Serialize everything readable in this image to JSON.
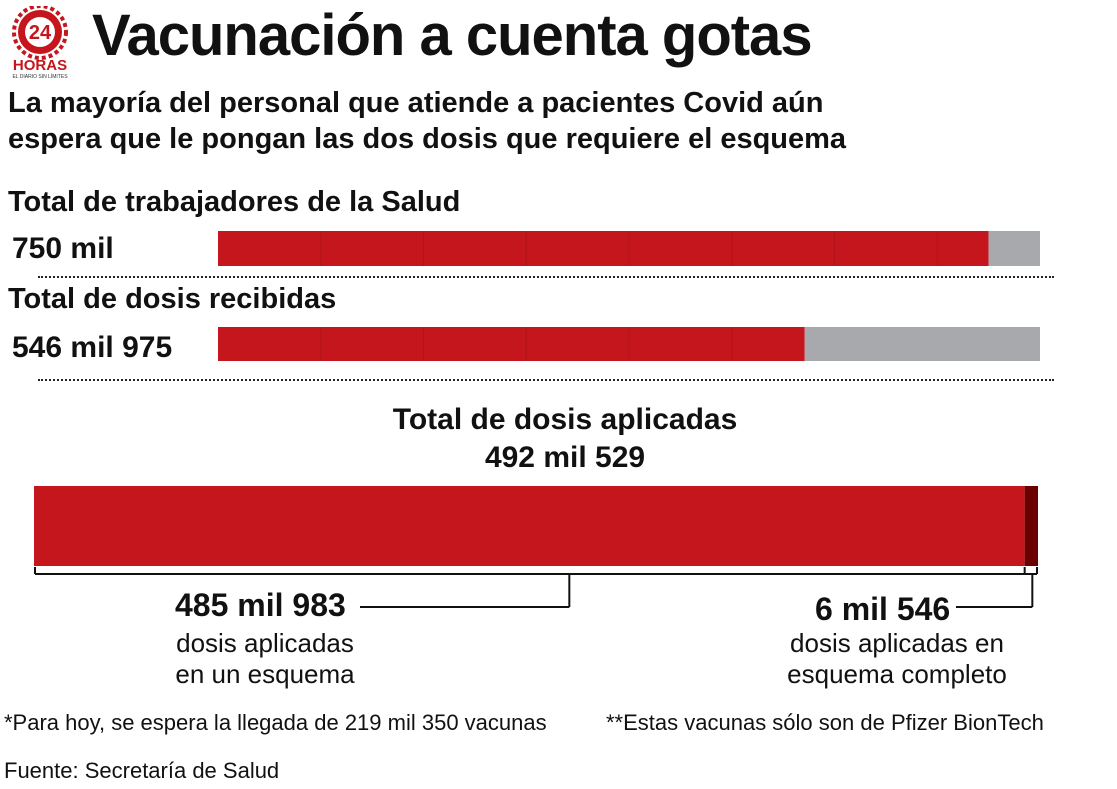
{
  "logo": {
    "number": "24",
    "brand": "HORAS",
    "tagline": "EL DIARIO SIN LÍMITES"
  },
  "title": "Vacunación a cuenta gotas",
  "subtitle": {
    "line1": "La mayoría del personal que atiende a pacientes Covid aún",
    "line2": "espera que le pongan las dos dosis que requiere el esquema"
  },
  "colors": {
    "red": "#c4161c",
    "dark_red": "#6b0000",
    "gray": "#a7a9ac",
    "text": "#111111"
  },
  "chart_data": [
    {
      "type": "bar",
      "orientation": "horizontal",
      "stacked": true,
      "title": "Total de trabajadores de la Salud",
      "value_label": "750 mil",
      "total": 800000,
      "segments": [
        {
          "value": 750000,
          "color": "#c4161c"
        },
        {
          "value": 50000,
          "color": "#a7a9ac"
        }
      ]
    },
    {
      "type": "bar",
      "orientation": "horizontal",
      "stacked": true,
      "title": "Total de dosis recibidas",
      "value_label": "546 mil 975",
      "total": 766325,
      "segments": [
        {
          "value": 546975,
          "color": "#c4161c"
        },
        {
          "value": 219350,
          "color": "#a7a9ac"
        }
      ]
    },
    {
      "type": "bar",
      "orientation": "horizontal",
      "stacked": true,
      "title": "Total de dosis aplicadas",
      "value_label": "492 mil 529",
      "total": 492529,
      "segments": [
        {
          "value": 485983,
          "label": "485 mil 983",
          "description": [
            "dosis aplicadas",
            "en un esquema"
          ],
          "color": "#c4161c"
        },
        {
          "value": 6546,
          "label": "6 mil 546",
          "description": [
            "dosis aplicadas en",
            "esquema completo"
          ],
          "color": "#6b0000"
        }
      ]
    }
  ],
  "notes": {
    "arrival": "*Para hoy, se espera la llegada de 219 mil 350 vacunas",
    "pfizer": "**Estas vacunas sólo son de Pfizer BionTech",
    "source": "Fuente: Secretaría de Salud"
  }
}
